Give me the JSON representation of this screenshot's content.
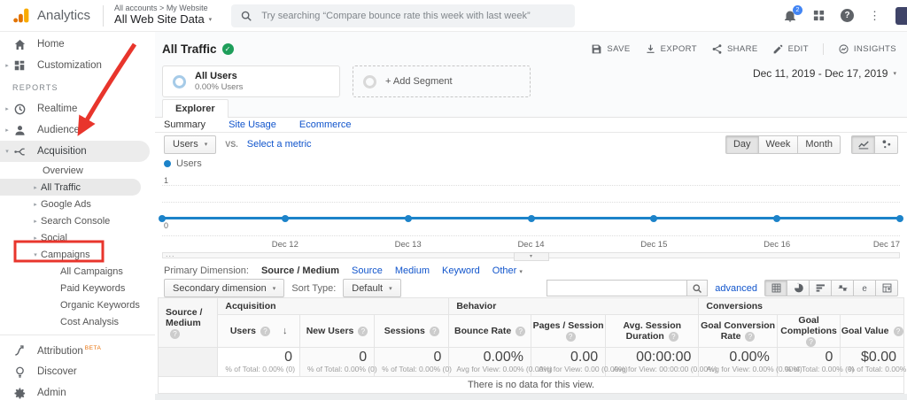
{
  "colors": {
    "link_blue": "#1155cc",
    "chart_line": "#1c83c9",
    "annotation_red": "#e8352c",
    "brand_orange": "#f9ab00",
    "success_green": "#1e9e5a",
    "badge_blue": "#4285f4"
  },
  "header": {
    "brand": "Analytics",
    "breadcrumb": "All accounts > My Website",
    "property": "All Web Site Data",
    "search_placeholder": "Try searching “Compare bounce rate this week with last week”",
    "notifications_count": "2",
    "icons": [
      "notifications-icon",
      "apps-grid-icon",
      "help-icon",
      "more-vert-icon"
    ]
  },
  "sidebar": {
    "items": [
      {
        "label": "Home",
        "icon": "home-icon",
        "level": 0
      },
      {
        "label": "Customization",
        "icon": "customization-icon",
        "level": 0,
        "caret": "right"
      },
      {
        "section": "REPORTS"
      },
      {
        "label": "Realtime",
        "icon": "realtime-icon",
        "level": 0,
        "caret": "right"
      },
      {
        "label": "Audience",
        "icon": "audience-icon",
        "level": 0,
        "caret": "right"
      },
      {
        "label": "Acquisition",
        "icon": "acquisition-icon",
        "level": 0,
        "caret": "down",
        "highlight": "row"
      },
      {
        "label": "Overview",
        "level": 1
      },
      {
        "label": "All Traffic",
        "level": 1,
        "caret": "right",
        "highlight": "pill"
      },
      {
        "label": "Google Ads",
        "level": 1,
        "caret": "right"
      },
      {
        "label": "Search Console",
        "level": 1,
        "caret": "right"
      },
      {
        "label": "Social",
        "level": 1,
        "caret": "right"
      },
      {
        "label": "Campaigns",
        "level": 1,
        "caret": "down"
      },
      {
        "label": "All Campaigns",
        "level": 2
      },
      {
        "label": "Paid Keywords",
        "level": 2
      },
      {
        "label": "Organic Keywords",
        "level": 2
      },
      {
        "label": "Cost Analysis",
        "level": 2
      },
      {
        "divider": true
      },
      {
        "label": "Attribution",
        "icon": "attribution-icon",
        "level": 0,
        "badge": "BETA"
      },
      {
        "label": "Discover",
        "icon": "discover-icon",
        "level": 0
      },
      {
        "label": "Admin",
        "icon": "admin-icon",
        "level": 0
      }
    ]
  },
  "report": {
    "title": "All Traffic",
    "actions": [
      {
        "label": "SAVE",
        "icon": "save-icon"
      },
      {
        "label": "EXPORT",
        "icon": "export-icon"
      },
      {
        "label": "SHARE",
        "icon": "share-icon"
      },
      {
        "label": "EDIT",
        "icon": "edit-icon"
      },
      {
        "label": "INSIGHTS",
        "icon": "insights-icon",
        "divider_before": true
      }
    ],
    "date_range": "Dec 11, 2019 - Dec 17, 2019",
    "segment": {
      "name": "All Users",
      "detail": "0.00% Users"
    },
    "add_segment": "+ Add Segment",
    "tab": "Explorer",
    "subtabs": [
      {
        "label": "Summary",
        "active": true
      },
      {
        "label": "Site Usage"
      },
      {
        "label": "Ecommerce"
      }
    ],
    "metric_selected": "Users",
    "vs_label": "VS.",
    "select_metric": "Select a metric",
    "granularity": [
      {
        "label": "Day",
        "active": true
      },
      {
        "label": "Week"
      },
      {
        "label": "Month"
      }
    ],
    "chart_toggles": [
      {
        "name": "line-chart-icon",
        "active": true
      },
      {
        "name": "motion-chart-icon"
      }
    ]
  },
  "chart_data": {
    "type": "line",
    "legend": "Users",
    "x": [
      "Dec 11",
      "Dec 12",
      "Dec 13",
      "Dec 14",
      "Dec 15",
      "Dec 16",
      "Dec 17"
    ],
    "series": [
      {
        "name": "Users",
        "values": [
          0,
          0,
          0,
          0,
          0,
          0,
          0
        ]
      }
    ],
    "visible_xticklabels": [
      "Dec 12",
      "Dec 13",
      "Dec 14",
      "Dec 15",
      "Dec 16",
      "Dec 17"
    ],
    "ylim": [
      0,
      1
    ],
    "yticks": [
      1,
      0
    ],
    "grid": "dotted-horizontal",
    "legend_position": "top-left",
    "scroll_handle": "..."
  },
  "dimension": {
    "label": "Primary Dimension:",
    "selected": "Source / Medium",
    "links": [
      "Source",
      "Medium",
      "Keyword"
    ],
    "other": "Other"
  },
  "toolbar": {
    "secondary_dimension": "Secondary dimension",
    "sort_type_label": "Sort Type:",
    "sort_value": "Default",
    "advanced": "advanced",
    "views": [
      {
        "name": "table-view-icon",
        "active": true
      },
      {
        "name": "percentage-view-icon"
      },
      {
        "name": "performance-view-icon"
      },
      {
        "name": "comparison-view-icon"
      },
      {
        "name": "term-cloud-view-icon"
      },
      {
        "name": "pivot-view-icon"
      }
    ]
  },
  "table": {
    "dimension_header": "Source / Medium",
    "columns": [
      {
        "group": "Acquisition",
        "label": "Users",
        "sorted": true,
        "total": "0",
        "subtotal": "% of Total: 0.00% (0)"
      },
      {
        "group": "Acquisition",
        "label": "New Users",
        "total": "0",
        "subtotal": "% of Total: 0.00% (0)"
      },
      {
        "group": "Acquisition",
        "label": "Sessions",
        "total": "0",
        "subtotal": "% of Total: 0.00% (0)"
      },
      {
        "group": "Behavior",
        "label": "Bounce Rate",
        "total": "0.00%",
        "subtotal": "Avg for View: 0.00% (0.00%)"
      },
      {
        "group": "Behavior",
        "label": "Pages / Session",
        "total": "0.00",
        "subtotal": "Avg for View: 0.00 (0.00%)"
      },
      {
        "group": "Behavior",
        "label": "Avg. Session Duration",
        "total": "00:00:00",
        "subtotal": "Avg for View: 00:00:00 (0.00%)"
      },
      {
        "group": "Conversions",
        "label": "Goal Conversion Rate",
        "total": "0.00%",
        "subtotal": "Avg for View: 0.00% (0.00%)"
      },
      {
        "group": "Conversions",
        "label": "Goal Completions",
        "total": "0",
        "subtotal": "% of Total: 0.00% (0)"
      },
      {
        "group": "Conversions",
        "label": "Goal Value",
        "total": "$0.00",
        "subtotal": "% of Total: 0.00% ($0.00)"
      }
    ],
    "col_widths": [
      "8%",
      "11%",
      "10%",
      "10%",
      "11%",
      "10%",
      "12.5%",
      "10.5%",
      "8.5%",
      "8.5%"
    ],
    "empty_message": "There is no data for this view."
  }
}
